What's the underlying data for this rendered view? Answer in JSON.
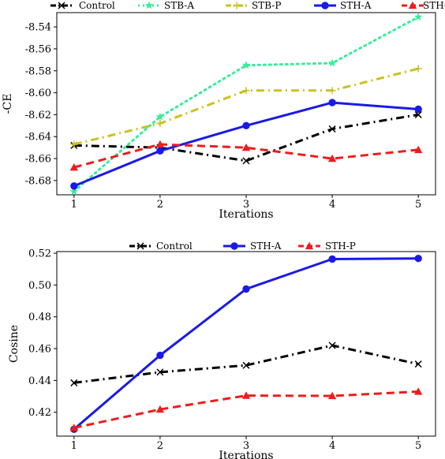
{
  "chart_data": [
    {
      "type": "line",
      "xlabel": "Iterations",
      "ylabel": "-CE",
      "x": [
        1,
        2,
        3,
        4,
        5
      ],
      "xlim": [
        0.8,
        5.2
      ],
      "ylim": [
        -8.693,
        -8.527
      ],
      "yticks": [
        -8.68,
        -8.66,
        -8.64,
        -8.62,
        -8.6,
        -8.58,
        -8.56,
        -8.54
      ],
      "ytick_labels": [
        "-8.68",
        "-8.66",
        "-8.64",
        "-8.62",
        "-8.60",
        "-8.58",
        "-8.56",
        "-8.54"
      ],
      "grid": false,
      "legend": "top, above plot, 5 columns",
      "series": [
        {
          "name": "Control",
          "values": [
            -8.648,
            -8.65,
            -8.662,
            -8.633,
            -8.62
          ],
          "color": "#000000",
          "dash": "dashdot",
          "marker": "x"
        },
        {
          "name": "STB-A",
          "values": [
            -8.69,
            -8.622,
            -8.575,
            -8.573,
            -8.531
          ],
          "color": "#33ee99",
          "dash": "dot",
          "marker": "star"
        },
        {
          "name": "STB-P",
          "values": [
            -8.647,
            -8.628,
            -8.598,
            -8.598,
            -8.578
          ],
          "color": "#c9c21e",
          "dash": "dashdot",
          "marker": "plus"
        },
        {
          "name": "STH-A",
          "values": [
            -8.685,
            -8.653,
            -8.63,
            -8.609,
            -8.615
          ],
          "color": "#1a1ae6",
          "dash": "solid",
          "marker": "circle"
        },
        {
          "name": "STH-P",
          "values": [
            -8.668,
            -8.647,
            -8.65,
            -8.66,
            -8.652
          ],
          "color": "#ee1c1c",
          "dash": "dashed",
          "marker": "triangle"
        }
      ]
    },
    {
      "type": "line",
      "xlabel": "Iterations",
      "ylabel": "Cosine",
      "x": [
        1,
        2,
        3,
        4,
        5
      ],
      "xlim": [
        0.8,
        5.2
      ],
      "ylim": [
        0.405,
        0.521
      ],
      "yticks": [
        0.42,
        0.44,
        0.46,
        0.48,
        0.5,
        0.52
      ],
      "ytick_labels": [
        "0.42",
        "0.44",
        "0.46",
        "0.48",
        "0.50",
        "0.52"
      ],
      "grid": false,
      "legend": "top, above plot, 3 columns",
      "series": [
        {
          "name": "Control",
          "values": [
            0.4385,
            0.4452,
            0.4495,
            0.462,
            0.4503
          ],
          "color": "#000000",
          "dash": "dashdot",
          "marker": "x"
        },
        {
          "name": "STH-A",
          "values": [
            0.4093,
            0.4558,
            0.4975,
            0.5163,
            0.5167
          ],
          "color": "#1a1ae6",
          "dash": "solid",
          "marker": "circle"
        },
        {
          "name": "STH-P",
          "values": [
            0.4102,
            0.4218,
            0.4305,
            0.4303,
            0.433
          ],
          "color": "#ee1c1c",
          "dash": "dashed",
          "marker": "triangle"
        }
      ]
    }
  ]
}
